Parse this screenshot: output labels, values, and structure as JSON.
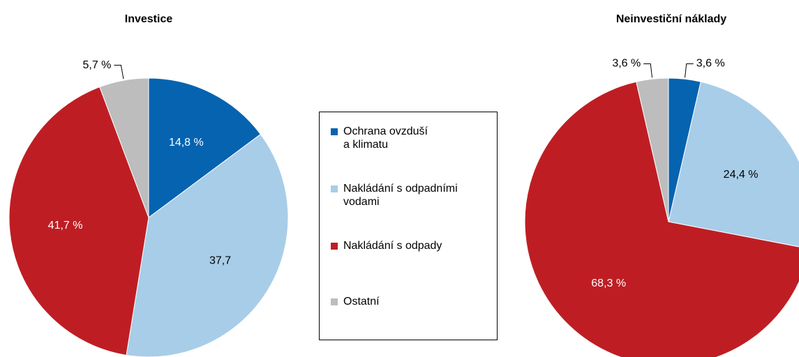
{
  "chart_data": [
    {
      "type": "pie",
      "title": "Investice",
      "values": [
        14.8,
        37.7,
        41.7,
        5.7
      ],
      "value_labels": [
        "14,8 %",
        "37,7",
        "41,7 %",
        "5,7 %"
      ],
      "colors": [
        "#0563b0",
        "#a8cde8",
        "#be1e23",
        "#bdbdbd"
      ]
    },
    {
      "type": "pie",
      "title": "Neinvestiční náklady",
      "values": [
        3.6,
        24.4,
        68.3,
        3.6
      ],
      "value_labels": [
        "3,6 %",
        "24,4 %",
        "68,3 %",
        "3,6 %"
      ],
      "colors": [
        "#0563b0",
        "#a8cde8",
        "#be1e23",
        "#bdbdbd"
      ]
    }
  ],
  "legend": {
    "labels": [
      "Ochrana ovzduší a klimatu",
      "Nakládání s odpadními vodami",
      "Nakládání s odpady",
      "Ostatní"
    ],
    "colors": [
      "#0563b0",
      "#a8cde8",
      "#be1e23",
      "#bdbdbd"
    ]
  }
}
